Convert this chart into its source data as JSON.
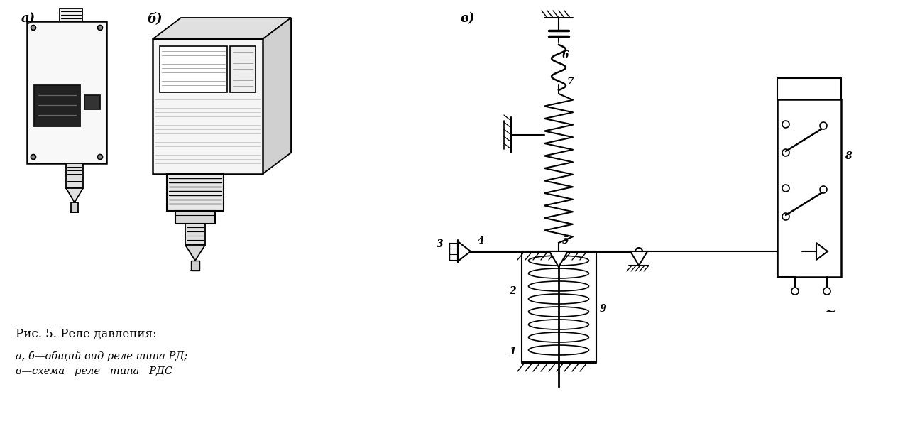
{
  "bg_color": "#ffffff",
  "line_color": "#000000",
  "caption_line1": "Рис. 5. Реле давления:",
  "caption_line2": "а, б—общий вид реле типа РД;",
  "caption_line3": "в—схема   реле   типа   РДС",
  "figsize": [
    12.82,
    6.07
  ],
  "dpi": 100
}
